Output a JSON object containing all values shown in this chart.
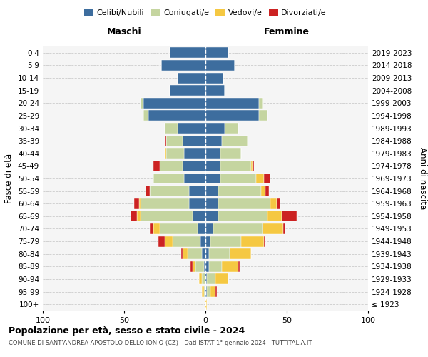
{
  "age_groups": [
    "100+",
    "95-99",
    "90-94",
    "85-89",
    "80-84",
    "75-79",
    "70-74",
    "65-69",
    "60-64",
    "55-59",
    "50-54",
    "45-49",
    "40-44",
    "35-39",
    "30-34",
    "25-29",
    "20-24",
    "15-19",
    "10-14",
    "5-9",
    "0-4"
  ],
  "birth_years": [
    "≤ 1923",
    "1924-1928",
    "1929-1933",
    "1934-1938",
    "1939-1943",
    "1944-1948",
    "1949-1953",
    "1954-1958",
    "1959-1963",
    "1964-1968",
    "1969-1973",
    "1974-1978",
    "1979-1983",
    "1984-1988",
    "1989-1993",
    "1994-1998",
    "1999-2003",
    "2004-2008",
    "2009-2013",
    "2014-2018",
    "2019-2023"
  ],
  "colors": {
    "celibi": "#3d6d9e",
    "coniugati": "#c5d5a0",
    "vedovi": "#f5c842",
    "divorziati": "#cc2222"
  },
  "maschi": {
    "celibi": [
      0,
      0,
      0,
      1,
      2,
      3,
      5,
      8,
      10,
      10,
      13,
      14,
      13,
      14,
      17,
      35,
      38,
      22,
      17,
      27,
      22
    ],
    "coniugati": [
      0,
      1,
      2,
      5,
      9,
      17,
      23,
      32,
      30,
      24,
      19,
      14,
      11,
      10,
      8,
      3,
      2,
      0,
      0,
      0,
      0
    ],
    "vedovi": [
      0,
      1,
      2,
      2,
      3,
      5,
      4,
      2,
      1,
      0,
      0,
      0,
      1,
      0,
      0,
      0,
      0,
      0,
      0,
      0,
      0
    ],
    "divorziati": [
      0,
      0,
      0,
      1,
      1,
      4,
      2,
      4,
      3,
      3,
      0,
      4,
      0,
      1,
      0,
      0,
      0,
      0,
      0,
      0,
      0
    ]
  },
  "femmine": {
    "celibi": [
      0,
      1,
      1,
      2,
      2,
      3,
      5,
      8,
      8,
      8,
      9,
      9,
      9,
      10,
      12,
      33,
      33,
      12,
      11,
      18,
      14
    ],
    "coniugati": [
      0,
      2,
      5,
      8,
      13,
      19,
      30,
      30,
      32,
      26,
      22,
      19,
      13,
      16,
      8,
      5,
      2,
      0,
      0,
      0,
      0
    ],
    "vedovi": [
      1,
      3,
      8,
      10,
      13,
      14,
      13,
      9,
      4,
      3,
      5,
      1,
      0,
      0,
      0,
      0,
      0,
      0,
      0,
      0,
      0
    ],
    "divorziati": [
      0,
      1,
      0,
      1,
      0,
      1,
      1,
      9,
      2,
      2,
      4,
      1,
      0,
      0,
      0,
      0,
      0,
      0,
      0,
      0,
      0
    ]
  },
  "xlim": 100,
  "title": "Popolazione per età, sesso e stato civile - 2024",
  "subtitle": "COMUNE DI SANT'ANDREA APOSTOLO DELLO IONIO (CZ) - Dati ISTAT 1° gennaio 2024 - TUTTITALIA.IT",
  "xlabel_left": "Maschi",
  "xlabel_right": "Femmine",
  "ylabel": "Fasce di età",
  "ylabel_right": "Anni di nascita",
  "legend_labels": [
    "Celibi/Nubili",
    "Coniugati/e",
    "Vedovi/e",
    "Divorziati/e"
  ],
  "bg_color": "#ffffff",
  "plot_bg": "#f5f5f5"
}
